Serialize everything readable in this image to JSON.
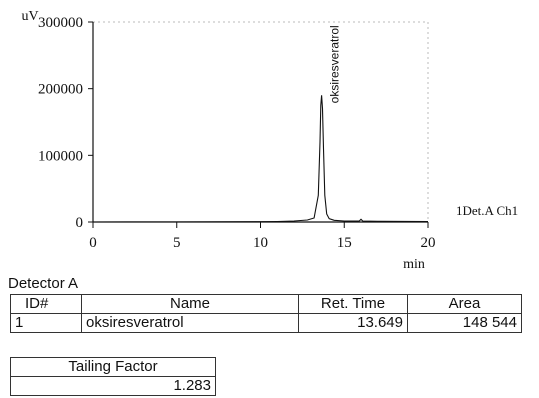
{
  "chart_data": {
    "type": "line",
    "y_axis_label": "uV",
    "x_axis_label": "min",
    "x_ticks": [
      0,
      5,
      10,
      15,
      20
    ],
    "y_ticks": [
      0,
      100000,
      200000,
      300000
    ],
    "y_tick_labels": [
      "0",
      "100000",
      "200000",
      "300000"
    ],
    "xlim": [
      0,
      20
    ],
    "ylim": [
      0,
      300000
    ],
    "channel_label": "1Det.A Ch1",
    "peaks": [
      {
        "name": "oksiresveratrol",
        "retention_time": 13.649,
        "height": 190000
      }
    ],
    "series": [
      {
        "x": [
          0,
          5,
          10,
          11,
          12,
          12.8,
          13.2,
          13.45,
          13.55,
          13.6,
          13.649,
          13.7,
          13.76,
          13.84,
          13.95,
          14.1,
          14.4,
          15,
          15.9,
          16,
          16.1,
          17,
          20
        ],
        "y": [
          0,
          200,
          400,
          800,
          1500,
          3000,
          6000,
          40000,
          120000,
          175000,
          190000,
          170000,
          110000,
          40000,
          12000,
          5000,
          2500,
          1500,
          1500,
          4000,
          1500,
          1000,
          800
        ]
      }
    ]
  },
  "detector_title": "Detector A",
  "peak_table": {
    "headers": [
      "ID#",
      "Name",
      "Ret. Time",
      "Area"
    ],
    "rows": [
      [
        "1",
        "oksiresveratrol",
        "13.649",
        "148 544"
      ]
    ]
  },
  "tailing_table": {
    "header": "Tailing Factor",
    "value": "1.283"
  }
}
